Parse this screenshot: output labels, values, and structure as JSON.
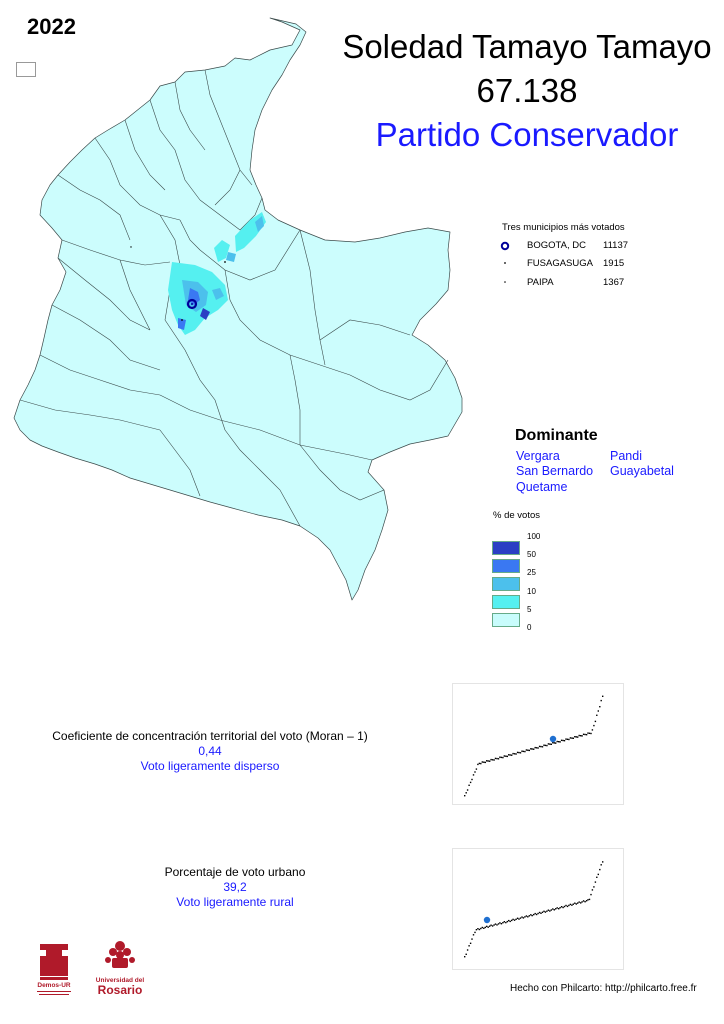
{
  "year": "2022",
  "candidate": {
    "name": "Soledad Tamayo Tamayo",
    "votes": "67.138",
    "party": "Partido Conservador"
  },
  "top_municipalities": {
    "title": "Tres municipios más votados",
    "items": [
      {
        "name": "BOGOTA, DC",
        "value": "11137",
        "symbol": "large-ring"
      },
      {
        "name": "FUSAGASUGA",
        "value": "1915",
        "symbol": "small-dot"
      },
      {
        "name": "PAIPA",
        "value": "1367",
        "symbol": "small-dot"
      }
    ]
  },
  "dominant": {
    "title": "Dominante",
    "items": [
      "Vergara",
      "San Bernardo",
      "Quetame",
      "Pandi",
      "Guayabetal"
    ]
  },
  "legend": {
    "title": "% de votos",
    "labels": [
      "100",
      "50",
      "25",
      "10",
      "5",
      "0"
    ],
    "colors": [
      "#2a3fc4",
      "#3a78f2",
      "#4cc0ec",
      "#55f0f0",
      "#c8fcfc"
    ]
  },
  "moran": {
    "label": "Coeficiente de concentración territorial del voto (Moran – 1)",
    "value": "0,44",
    "description": "Voto ligeramente disperso"
  },
  "urban": {
    "label": "Porcentaje de voto urbano",
    "value": "39,2",
    "description": "Voto ligeramente rural"
  },
  "credit": "Hecho con Philcarto: http://philcarto.free.fr",
  "logos": {
    "demos": "Demos-UR",
    "rosario_top": "Universidad del",
    "rosario_bottom": "Rosario"
  },
  "colors": {
    "land": "#ccfdfd",
    "border": "#3a4a4a",
    "accent_blue": "#1a1aff",
    "highlight": "#1f6fd0"
  }
}
